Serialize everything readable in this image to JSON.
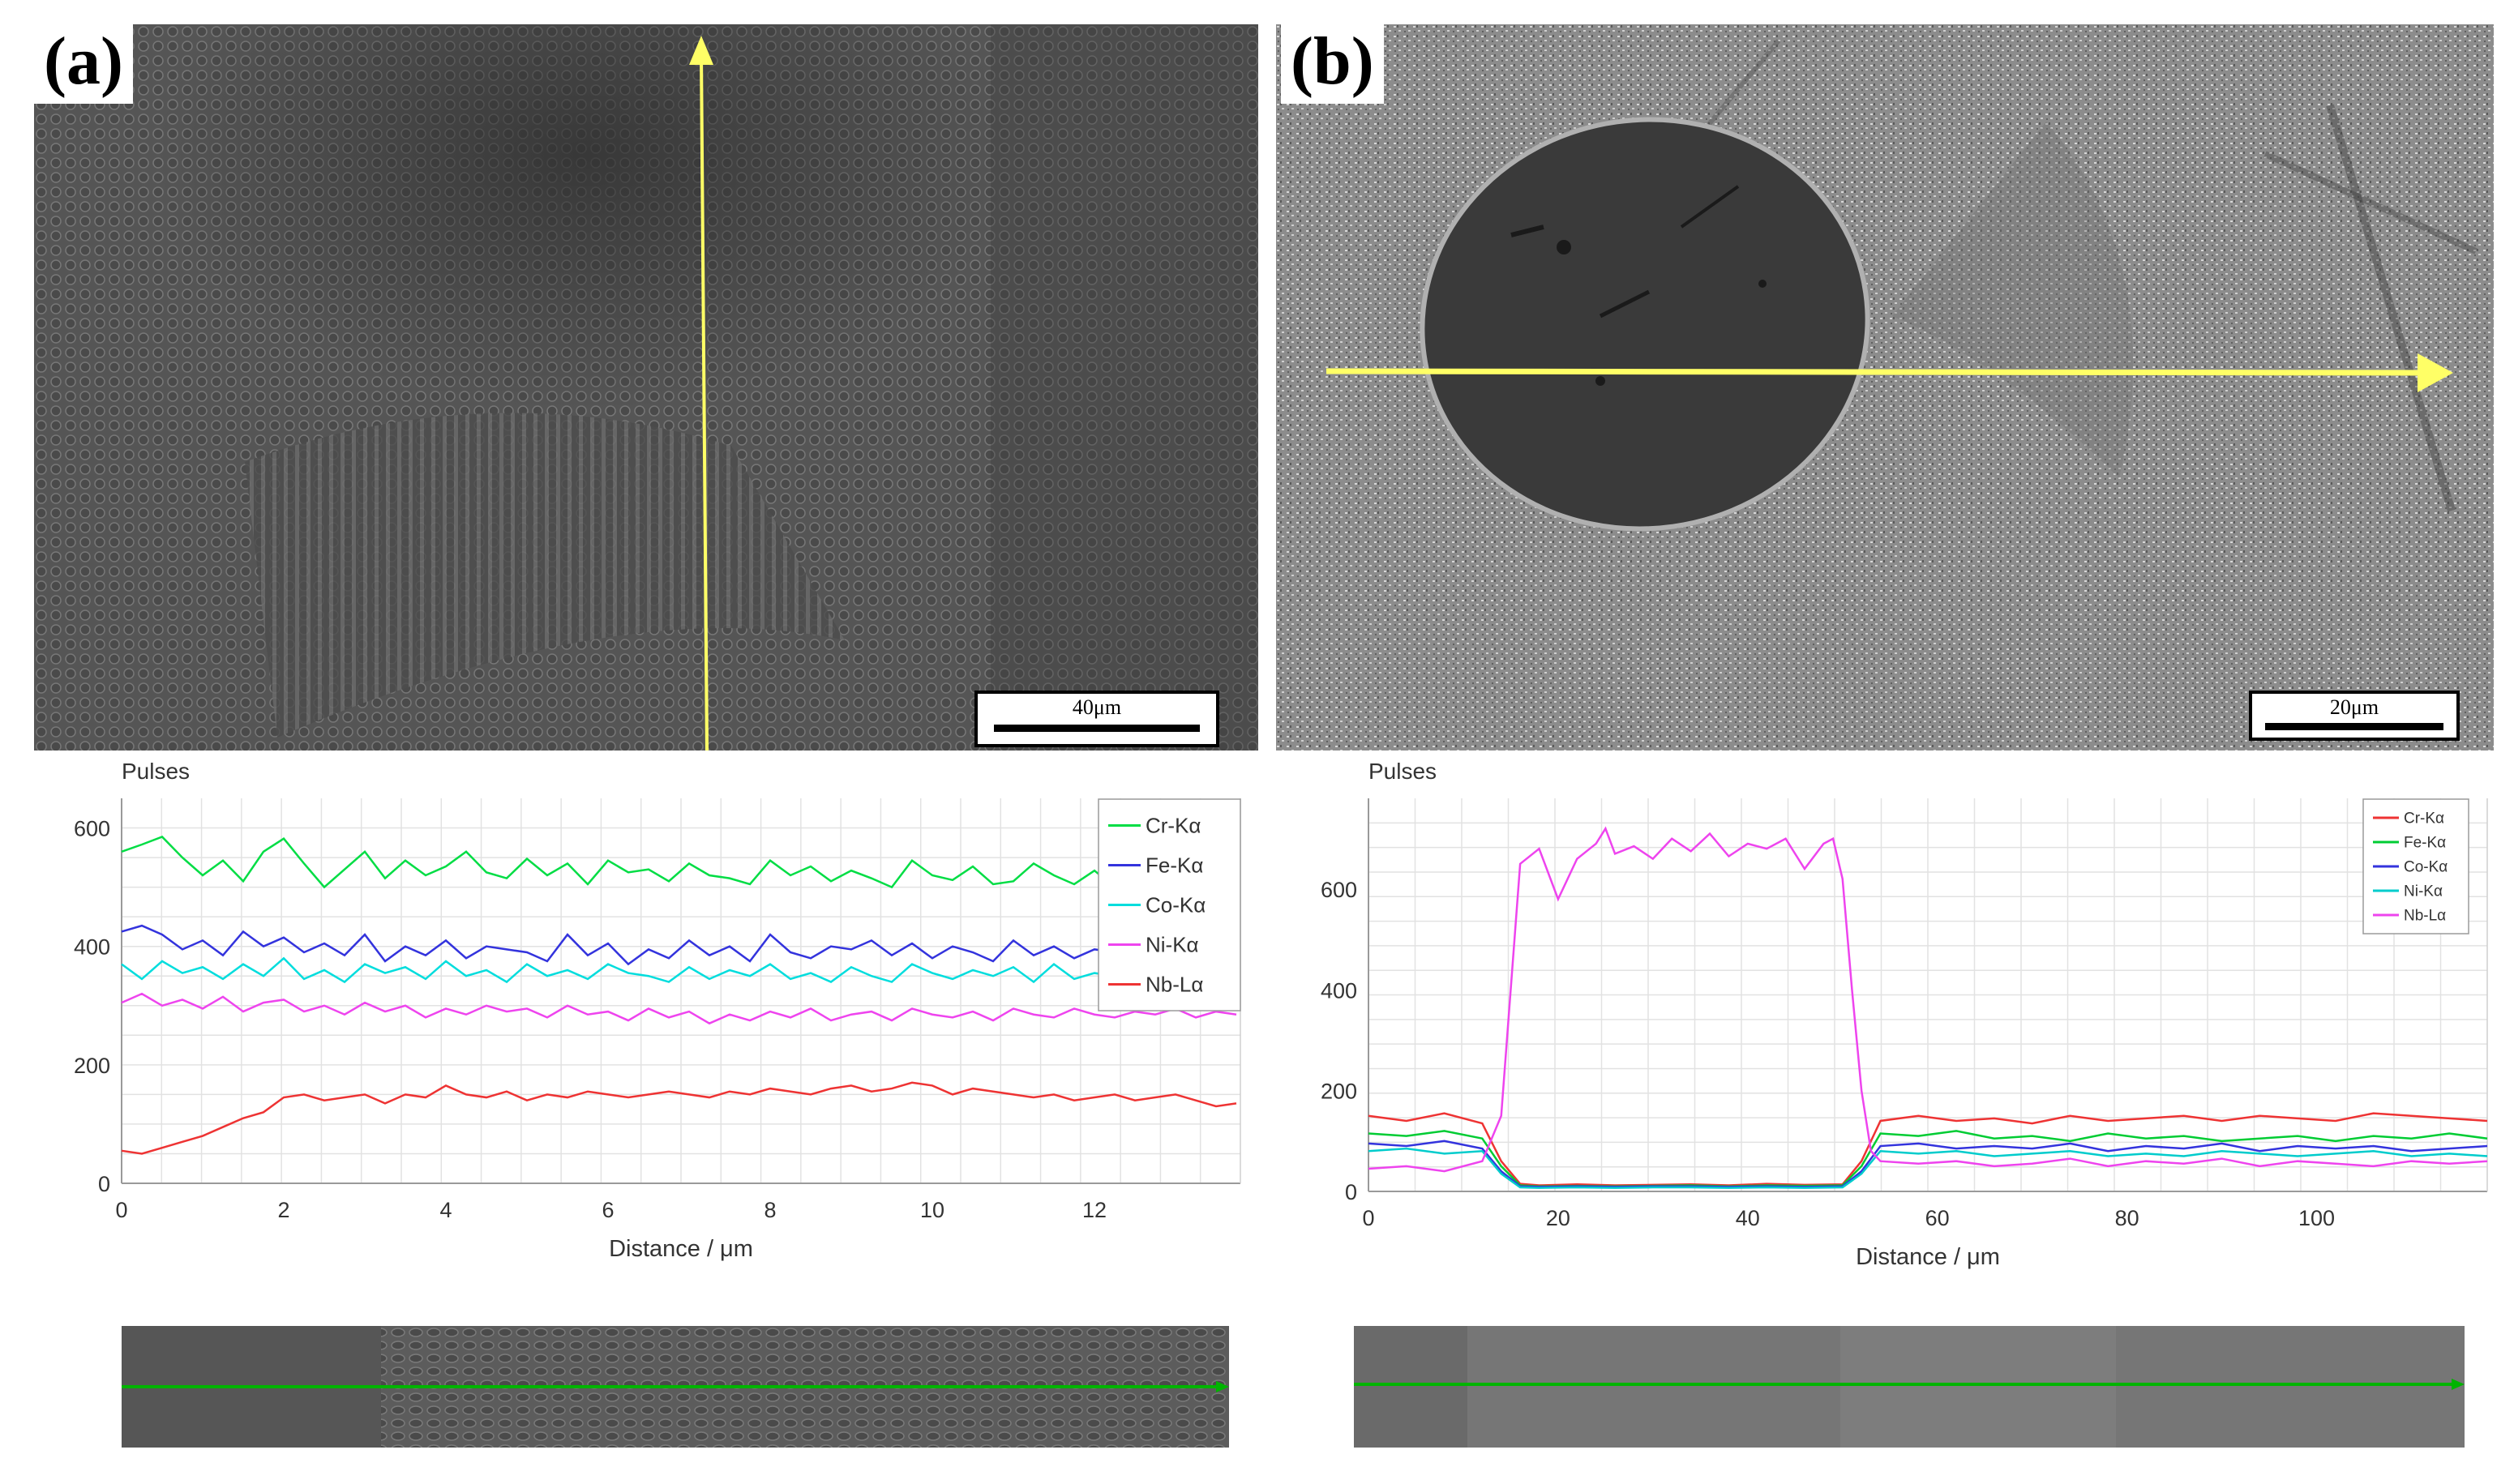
{
  "panels": {
    "a": {
      "label": "(a)",
      "scale_bar": "40μm",
      "strip_color": "#00b400"
    },
    "b": {
      "label": "(b)",
      "scale_bar": "20μm",
      "strip_color": "#00b400"
    }
  },
  "colors": {
    "arrow": "#ffff66",
    "grid": "#e2e2e2"
  },
  "chart_data": [
    {
      "type": "line",
      "panel": "a",
      "title": "",
      "ylabel": "Pulses",
      "xlabel": "Distance / μm",
      "xlim": [
        0,
        13.8
      ],
      "ylim": [
        0,
        650
      ],
      "xticks": [
        0,
        2,
        4,
        6,
        8,
        10,
        12
      ],
      "yticks": [
        0,
        200,
        400,
        600
      ],
      "legend_position": "top-right",
      "grid": true,
      "series": [
        {
          "name": "Cr-Kα",
          "color": "#00dd44",
          "x": [
            0,
            0.25,
            0.5,
            0.75,
            1,
            1.25,
            1.5,
            1.75,
            2,
            2.25,
            2.5,
            2.75,
            3,
            3.25,
            3.5,
            3.75,
            4,
            4.25,
            4.5,
            4.75,
            5,
            5.25,
            5.5,
            5.75,
            6,
            6.25,
            6.5,
            6.75,
            7,
            7.25,
            7.5,
            7.75,
            8,
            8.25,
            8.5,
            8.75,
            9,
            9.25,
            9.5,
            9.75,
            10,
            10.25,
            10.5,
            10.75,
            11,
            11.25,
            11.5,
            11.75,
            12,
            12.25,
            12.5,
            12.75,
            13,
            13.25,
            13.5,
            13.75
          ],
          "y": [
            560,
            572,
            585,
            550,
            520,
            545,
            510,
            560,
            582,
            540,
            500,
            530,
            560,
            515,
            545,
            520,
            535,
            560,
            525,
            515,
            548,
            520,
            540,
            505,
            545,
            525,
            530,
            510,
            540,
            520,
            515,
            505,
            545,
            520,
            535,
            510,
            528,
            515,
            500,
            545,
            520,
            512,
            535,
            505,
            510,
            540,
            520,
            505,
            528,
            500,
            520,
            510,
            505,
            520,
            505,
            515
          ]
        },
        {
          "name": "Fe-Kα",
          "color": "#3333dd",
          "x": [
            0,
            0.25,
            0.5,
            0.75,
            1,
            1.25,
            1.5,
            1.75,
            2,
            2.25,
            2.5,
            2.75,
            3,
            3.25,
            3.5,
            3.75,
            4,
            4.25,
            4.5,
            4.75,
            5,
            5.25,
            5.5,
            5.75,
            6,
            6.25,
            6.5,
            6.75,
            7,
            7.25,
            7.5,
            7.75,
            8,
            8.25,
            8.5,
            8.75,
            9,
            9.25,
            9.5,
            9.75,
            10,
            10.25,
            10.5,
            10.75,
            11,
            11.25,
            11.5,
            11.75,
            12,
            12.25,
            12.5,
            12.75,
            13,
            13.25,
            13.5,
            13.75
          ],
          "y": [
            425,
            435,
            420,
            395,
            410,
            385,
            425,
            400,
            415,
            390,
            405,
            385,
            420,
            375,
            400,
            385,
            410,
            380,
            400,
            395,
            390,
            375,
            420,
            385,
            405,
            370,
            395,
            380,
            410,
            385,
            400,
            375,
            420,
            390,
            380,
            400,
            395,
            410,
            385,
            405,
            380,
            400,
            390,
            375,
            410,
            385,
            400,
            380,
            395,
            390,
            375,
            405,
            385,
            400,
            390,
            380
          ]
        },
        {
          "name": "Co-Kα",
          "color": "#00dddd",
          "x": [
            0,
            0.25,
            0.5,
            0.75,
            1,
            1.25,
            1.5,
            1.75,
            2,
            2.25,
            2.5,
            2.75,
            3,
            3.25,
            3.5,
            3.75,
            4,
            4.25,
            4.5,
            4.75,
            5,
            5.25,
            5.5,
            5.75,
            6,
            6.25,
            6.5,
            6.75,
            7,
            7.25,
            7.5,
            7.75,
            8,
            8.25,
            8.5,
            8.75,
            9,
            9.25,
            9.5,
            9.75,
            10,
            10.25,
            10.5,
            10.75,
            11,
            11.25,
            11.5,
            11.75,
            12,
            12.25,
            12.5,
            12.75,
            13,
            13.25,
            13.5,
            13.75
          ],
          "y": [
            370,
            345,
            375,
            355,
            365,
            345,
            370,
            350,
            380,
            345,
            360,
            340,
            370,
            355,
            365,
            345,
            375,
            350,
            360,
            340,
            370,
            350,
            360,
            345,
            370,
            355,
            350,
            340,
            365,
            345,
            360,
            350,
            370,
            345,
            355,
            340,
            365,
            350,
            340,
            370,
            355,
            345,
            360,
            350,
            365,
            340,
            370,
            345,
            355,
            350,
            360,
            340,
            365,
            345,
            355,
            350
          ]
        },
        {
          "name": "Ni-Kα",
          "color": "#ee44ee",
          "x": [
            0,
            0.25,
            0.5,
            0.75,
            1,
            1.25,
            1.5,
            1.75,
            2,
            2.25,
            2.5,
            2.75,
            3,
            3.25,
            3.5,
            3.75,
            4,
            4.25,
            4.5,
            4.75,
            5,
            5.25,
            5.5,
            5.75,
            6,
            6.25,
            6.5,
            6.75,
            7,
            7.25,
            7.5,
            7.75,
            8,
            8.25,
            8.5,
            8.75,
            9,
            9.25,
            9.5,
            9.75,
            10,
            10.25,
            10.5,
            10.75,
            11,
            11.25,
            11.5,
            11.75,
            12,
            12.25,
            12.5,
            12.75,
            13,
            13.25,
            13.5,
            13.75
          ],
          "y": [
            305,
            320,
            300,
            310,
            295,
            315,
            290,
            305,
            310,
            290,
            300,
            285,
            305,
            290,
            300,
            280,
            295,
            285,
            300,
            290,
            295,
            280,
            300,
            285,
            290,
            275,
            295,
            280,
            290,
            270,
            285,
            275,
            290,
            280,
            295,
            275,
            285,
            290,
            275,
            295,
            285,
            280,
            290,
            275,
            295,
            285,
            280,
            295,
            285,
            280,
            290,
            285,
            295,
            280,
            290,
            285
          ]
        },
        {
          "name": "Nb-Lα",
          "color": "#ee3333",
          "x": [
            0,
            0.25,
            0.5,
            0.75,
            1,
            1.25,
            1.5,
            1.75,
            2,
            2.25,
            2.5,
            2.75,
            3,
            3.25,
            3.5,
            3.75,
            4,
            4.25,
            4.5,
            4.75,
            5,
            5.25,
            5.5,
            5.75,
            6,
            6.25,
            6.5,
            6.75,
            7,
            7.25,
            7.5,
            7.75,
            8,
            8.25,
            8.5,
            8.75,
            9,
            9.25,
            9.5,
            9.75,
            10,
            10.25,
            10.5,
            10.75,
            11,
            11.25,
            11.5,
            11.75,
            12,
            12.25,
            12.5,
            12.75,
            13,
            13.25,
            13.5,
            13.75
          ],
          "y": [
            55,
            50,
            60,
            70,
            80,
            95,
            110,
            120,
            145,
            150,
            140,
            145,
            150,
            135,
            150,
            145,
            165,
            150,
            145,
            155,
            140,
            150,
            145,
            155,
            150,
            145,
            150,
            155,
            150,
            145,
            155,
            150,
            160,
            155,
            150,
            160,
            165,
            155,
            160,
            170,
            165,
            150,
            160,
            155,
            150,
            145,
            150,
            140,
            145,
            150,
            140,
            145,
            150,
            140,
            130,
            135
          ]
        }
      ]
    },
    {
      "type": "line",
      "panel": "b",
      "title": "",
      "ylabel": "Pulses",
      "xlabel": "Distance / μm",
      "xlim": [
        0,
        118
      ],
      "ylim": [
        0,
        780
      ],
      "xticks": [
        0,
        20,
        40,
        60,
        80,
        100
      ],
      "yticks": [
        0,
        200,
        400,
        600
      ],
      "legend_position": "top-right",
      "grid": true,
      "series": [
        {
          "name": "Cr-Kα",
          "color": "#ee3333",
          "x": [
            0,
            4,
            8,
            12,
            14,
            16,
            18,
            22,
            26,
            30,
            34,
            38,
            42,
            46,
            50,
            52,
            54,
            58,
            62,
            66,
            70,
            74,
            78,
            82,
            86,
            90,
            94,
            98,
            102,
            106,
            110,
            114,
            118
          ],
          "y": [
            150,
            140,
            155,
            135,
            60,
            15,
            12,
            14,
            12,
            13,
            14,
            12,
            15,
            13,
            14,
            60,
            140,
            150,
            140,
            145,
            135,
            150,
            140,
            145,
            150,
            140,
            150,
            145,
            140,
            155,
            150,
            145,
            140
          ]
        },
        {
          "name": "Fe-Kα",
          "color": "#00cc33",
          "x": [
            0,
            4,
            8,
            12,
            14,
            16,
            18,
            22,
            26,
            30,
            34,
            38,
            42,
            46,
            50,
            52,
            54,
            58,
            62,
            66,
            70,
            74,
            78,
            82,
            86,
            90,
            94,
            98,
            102,
            106,
            110,
            114,
            118
          ],
          "y": [
            115,
            110,
            120,
            105,
            50,
            12,
            10,
            11,
            10,
            11,
            12,
            10,
            12,
            11,
            12,
            50,
            115,
            110,
            120,
            105,
            110,
            100,
            115,
            105,
            110,
            100,
            105,
            110,
            100,
            110,
            105,
            115,
            105
          ]
        },
        {
          "name": "Co-Kα",
          "color": "#3333dd",
          "x": [
            0,
            4,
            8,
            12,
            14,
            16,
            18,
            22,
            26,
            30,
            34,
            38,
            42,
            46,
            50,
            52,
            54,
            58,
            62,
            66,
            70,
            74,
            78,
            82,
            86,
            90,
            94,
            98,
            102,
            106,
            110,
            114,
            118
          ],
          "y": [
            95,
            90,
            100,
            85,
            40,
            10,
            9,
            10,
            9,
            10,
            10,
            9,
            10,
            9,
            10,
            40,
            90,
            95,
            85,
            90,
            85,
            95,
            80,
            90,
            85,
            95,
            80,
            90,
            85,
            90,
            80,
            85,
            90
          ]
        },
        {
          "name": "Ni-Kα",
          "color": "#00cccc",
          "x": [
            0,
            4,
            8,
            12,
            14,
            16,
            18,
            22,
            26,
            30,
            34,
            38,
            42,
            46,
            50,
            52,
            54,
            58,
            62,
            66,
            70,
            74,
            78,
            82,
            86,
            90,
            94,
            98,
            102,
            106,
            110,
            114,
            118
          ],
          "y": [
            80,
            85,
            75,
            80,
            35,
            8,
            7,
            8,
            7,
            8,
            8,
            7,
            8,
            7,
            8,
            35,
            80,
            75,
            80,
            70,
            75,
            80,
            70,
            75,
            70,
            80,
            75,
            70,
            75,
            80,
            70,
            75,
            70
          ]
        },
        {
          "name": "Nb-Lα",
          "color": "#ee44ee",
          "x": [
            0,
            4,
            8,
            12,
            14,
            15,
            16,
            18,
            20,
            22,
            24,
            25,
            26,
            28,
            30,
            32,
            34,
            36,
            38,
            40,
            42,
            44,
            46,
            48,
            49,
            50,
            51,
            52,
            53,
            54,
            58,
            62,
            66,
            70,
            74,
            78,
            82,
            86,
            90,
            94,
            98,
            102,
            106,
            110,
            114,
            118
          ],
          "y": [
            45,
            50,
            40,
            60,
            150,
            400,
            650,
            680,
            580,
            660,
            690,
            720,
            670,
            685,
            660,
            700,
            675,
            710,
            665,
            690,
            680,
            700,
            640,
            690,
            700,
            620,
            400,
            200,
            80,
            60,
            55,
            60,
            50,
            55,
            65,
            50,
            60,
            55,
            65,
            50,
            60,
            55,
            50,
            60,
            55,
            60
          ]
        }
      ]
    }
  ]
}
